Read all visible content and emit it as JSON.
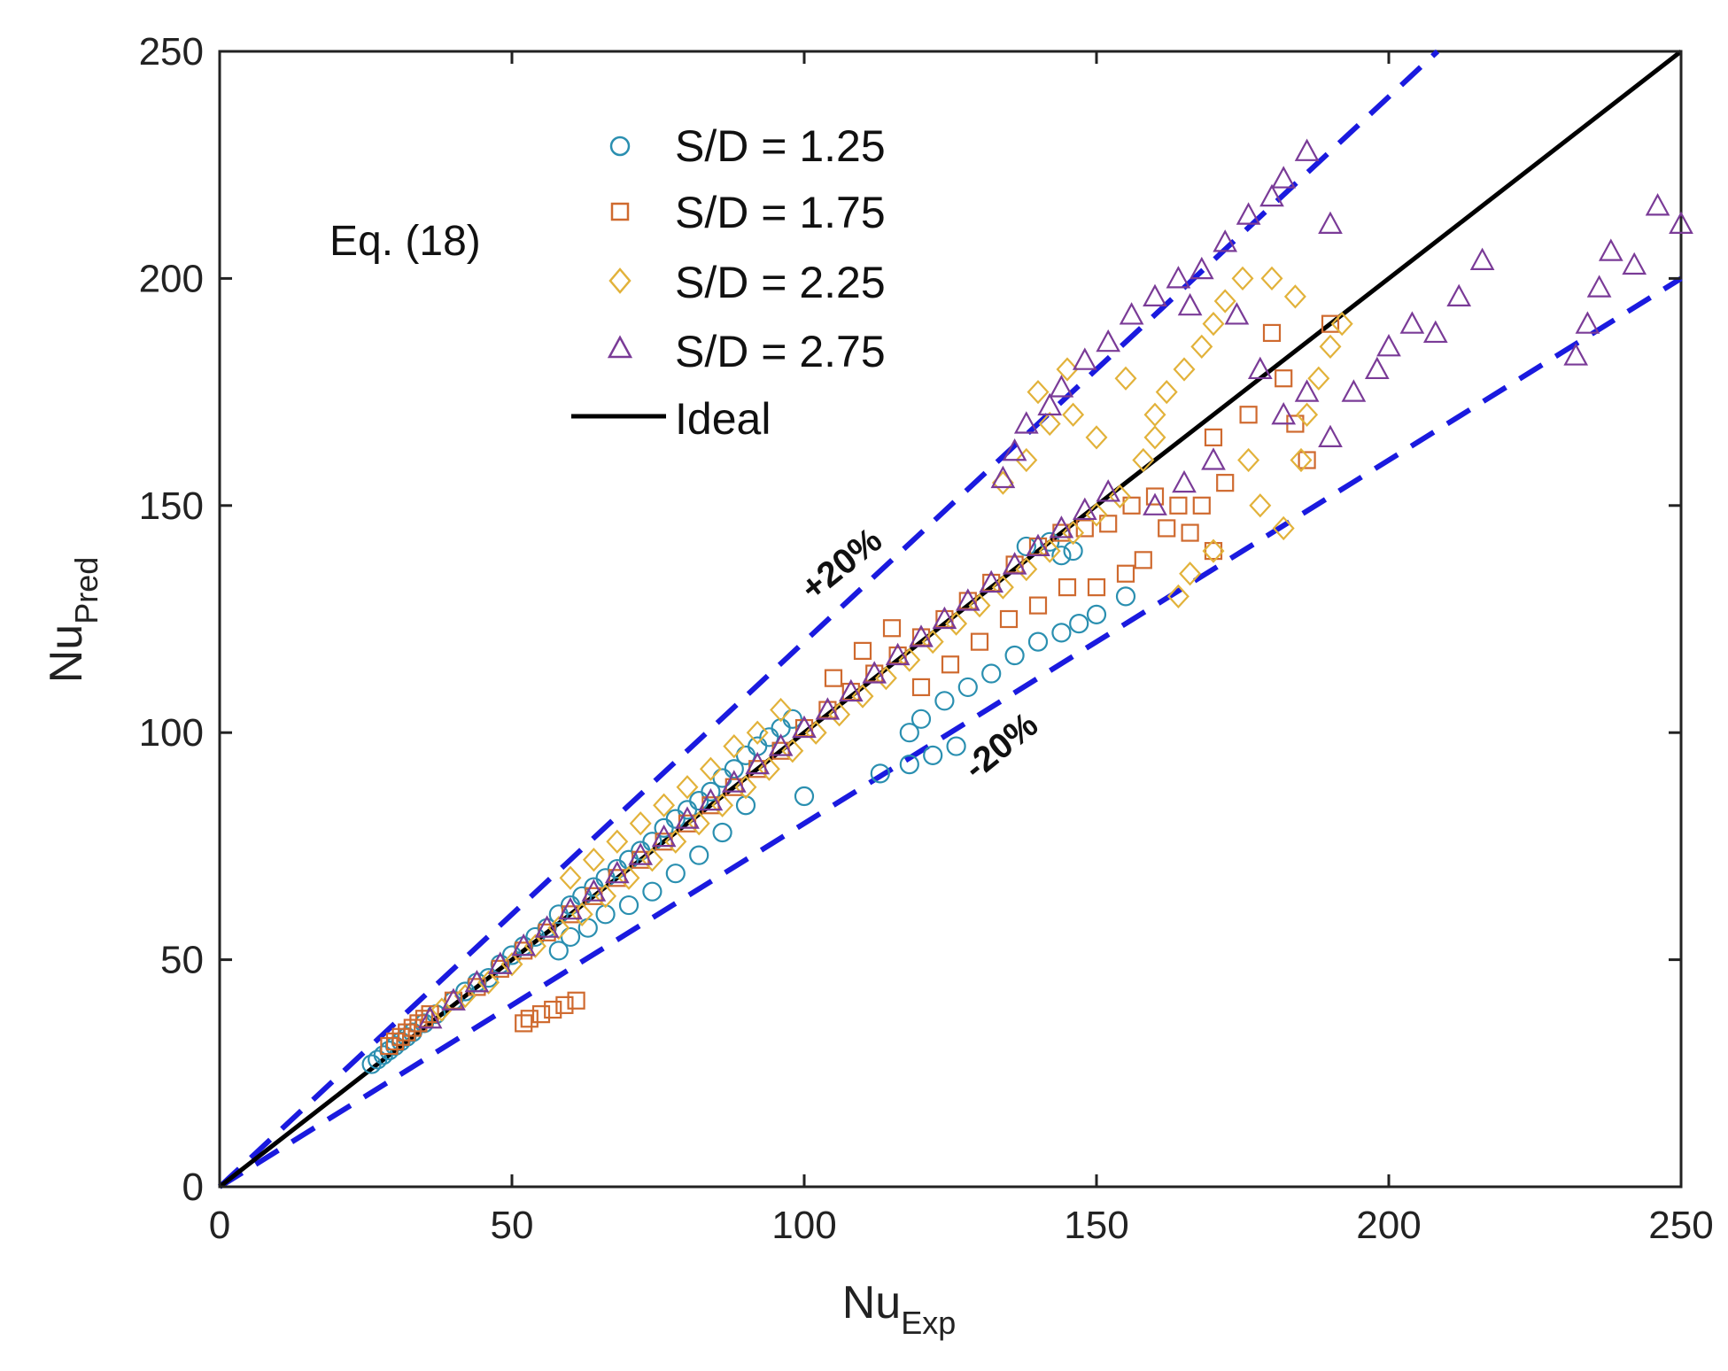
{
  "chart_data": {
    "type": "scatter",
    "title": "",
    "xlabel": "Nu",
    "xlabel_sub": "Exp",
    "ylabel": "Nu",
    "ylabel_sub": "Pred",
    "xlim": [
      0,
      250
    ],
    "ylim": [
      0,
      250
    ],
    "x_ticks": [
      "0",
      "50",
      "100",
      "150",
      "200",
      "250"
    ],
    "y_ticks": [
      "0",
      "50",
      "100",
      "150",
      "200",
      "250"
    ],
    "grid": false,
    "legend_position": "top-left",
    "annotation": "Eq. (18)",
    "band_labels": {
      "upper": "+20%",
      "lower": "-20%"
    },
    "colors": {
      "s125": "#2a8fb0",
      "s175": "#cf6a2f",
      "s225": "#e2b23a",
      "s275": "#7a3b97",
      "ideal": "#000000",
      "band": "#1a1adf"
    },
    "series": [
      {
        "name": "S/D = 1.25",
        "marker": "circle",
        "color_key": "s125",
        "points": [
          [
            26,
            27
          ],
          [
            27,
            28
          ],
          [
            28,
            29
          ],
          [
            29,
            30
          ],
          [
            30,
            31
          ],
          [
            31,
            32
          ],
          [
            32,
            33
          ],
          [
            33,
            34
          ],
          [
            35,
            36
          ],
          [
            37,
            38
          ],
          [
            40,
            41
          ],
          [
            42,
            43
          ],
          [
            44,
            45
          ],
          [
            46,
            46
          ],
          [
            48,
            49
          ],
          [
            50,
            51
          ],
          [
            52,
            53
          ],
          [
            54,
            55
          ],
          [
            56,
            57
          ],
          [
            58,
            60
          ],
          [
            60,
            62
          ],
          [
            62,
            64
          ],
          [
            64,
            66
          ],
          [
            66,
            68
          ],
          [
            68,
            70
          ],
          [
            70,
            72
          ],
          [
            72,
            74
          ],
          [
            74,
            76
          ],
          [
            76,
            79
          ],
          [
            78,
            81
          ],
          [
            80,
            83
          ],
          [
            82,
            85
          ],
          [
            84,
            87
          ],
          [
            86,
            90
          ],
          [
            88,
            92
          ],
          [
            90,
            95
          ],
          [
            92,
            97
          ],
          [
            94,
            99
          ],
          [
            96,
            101
          ],
          [
            98,
            103
          ],
          [
            58,
            52
          ],
          [
            60,
            55
          ],
          [
            63,
            57
          ],
          [
            66,
            60
          ],
          [
            70,
            62
          ],
          [
            74,
            65
          ],
          [
            78,
            69
          ],
          [
            82,
            73
          ],
          [
            86,
            78
          ],
          [
            90,
            84
          ],
          [
            100,
            86
          ],
          [
            113,
            91
          ],
          [
            118,
            93
          ],
          [
            122,
            95
          ],
          [
            126,
            97
          ],
          [
            118,
            100
          ],
          [
            120,
            103
          ],
          [
            124,
            107
          ],
          [
            128,
            110
          ],
          [
            132,
            113
          ],
          [
            136,
            117
          ],
          [
            140,
            120
          ],
          [
            144,
            122
          ],
          [
            147,
            124
          ],
          [
            150,
            126
          ],
          [
            155,
            130
          ],
          [
            138,
            141
          ],
          [
            142,
            142
          ],
          [
            144,
            139
          ],
          [
            146,
            140
          ]
        ]
      },
      {
        "name": "S/D = 1.75",
        "marker": "square",
        "color_key": "s175",
        "points": [
          [
            29,
            31
          ],
          [
            30,
            32
          ],
          [
            31,
            33
          ],
          [
            32,
            34
          ],
          [
            33,
            35
          ],
          [
            34,
            36
          ],
          [
            35,
            37
          ],
          [
            36,
            38
          ],
          [
            52,
            36
          ],
          [
            53,
            37
          ],
          [
            55,
            38
          ],
          [
            57,
            39
          ],
          [
            59,
            40
          ],
          [
            61,
            41
          ],
          [
            40,
            41
          ],
          [
            44,
            44
          ],
          [
            48,
            48
          ],
          [
            52,
            52
          ],
          [
            56,
            56
          ],
          [
            60,
            60
          ],
          [
            64,
            64
          ],
          [
            68,
            68
          ],
          [
            72,
            72
          ],
          [
            76,
            76
          ],
          [
            80,
            80
          ],
          [
            84,
            84
          ],
          [
            88,
            88
          ],
          [
            92,
            92
          ],
          [
            96,
            96
          ],
          [
            100,
            101
          ],
          [
            104,
            105
          ],
          [
            108,
            109
          ],
          [
            112,
            113
          ],
          [
            116,
            117
          ],
          [
            120,
            121
          ],
          [
            124,
            125
          ],
          [
            128,
            129
          ],
          [
            132,
            133
          ],
          [
            136,
            137
          ],
          [
            140,
            141
          ],
          [
            144,
            144
          ],
          [
            148,
            145
          ],
          [
            152,
            146
          ],
          [
            156,
            150
          ],
          [
            160,
            152
          ],
          [
            164,
            150
          ],
          [
            166,
            144
          ],
          [
            170,
            140
          ],
          [
            150,
            132
          ],
          [
            155,
            135
          ],
          [
            158,
            138
          ],
          [
            162,
            145
          ],
          [
            168,
            150
          ],
          [
            172,
            155
          ],
          [
            176,
            170
          ],
          [
            180,
            188
          ],
          [
            182,
            178
          ],
          [
            184,
            168
          ],
          [
            186,
            160
          ],
          [
            190,
            190
          ],
          [
            120,
            110
          ],
          [
            125,
            115
          ],
          [
            130,
            120
          ],
          [
            135,
            125
          ],
          [
            140,
            128
          ],
          [
            145,
            132
          ],
          [
            105,
            112
          ],
          [
            110,
            118
          ],
          [
            115,
            123
          ],
          [
            170,
            165
          ]
        ]
      },
      {
        "name": "S/D = 2.25",
        "marker": "diamond",
        "color_key": "s225",
        "points": [
          [
            38,
            39
          ],
          [
            42,
            42
          ],
          [
            46,
            45
          ],
          [
            50,
            49
          ],
          [
            54,
            53
          ],
          [
            58,
            57
          ],
          [
            62,
            60
          ],
          [
            66,
            64
          ],
          [
            70,
            68
          ],
          [
            74,
            72
          ],
          [
            78,
            76
          ],
          [
            82,
            80
          ],
          [
            86,
            84
          ],
          [
            90,
            88
          ],
          [
            94,
            92
          ],
          [
            98,
            96
          ],
          [
            102,
            100
          ],
          [
            106,
            104
          ],
          [
            110,
            108
          ],
          [
            114,
            112
          ],
          [
            118,
            116
          ],
          [
            122,
            120
          ],
          [
            126,
            124
          ],
          [
            130,
            128
          ],
          [
            134,
            132
          ],
          [
            138,
            136
          ],
          [
            142,
            140
          ],
          [
            146,
            144
          ],
          [
            150,
            148
          ],
          [
            154,
            152
          ],
          [
            158,
            160
          ],
          [
            160,
            170
          ],
          [
            162,
            175
          ],
          [
            165,
            180
          ],
          [
            168,
            185
          ],
          [
            170,
            190
          ],
          [
            172,
            195
          ],
          [
            175,
            200
          ],
          [
            180,
            200
          ],
          [
            184,
            196
          ],
          [
            186,
            170
          ],
          [
            188,
            178
          ],
          [
            190,
            185
          ],
          [
            192,
            190
          ],
          [
            176,
            160
          ],
          [
            178,
            150
          ],
          [
            182,
            145
          ],
          [
            185,
            160
          ],
          [
            170,
            140
          ],
          [
            166,
            135
          ],
          [
            150,
            165
          ],
          [
            146,
            170
          ],
          [
            142,
            168
          ],
          [
            138,
            160
          ],
          [
            134,
            155
          ],
          [
            140,
            175
          ],
          [
            145,
            180
          ],
          [
            155,
            178
          ],
          [
            160,
            165
          ],
          [
            164,
            130
          ],
          [
            60,
            68
          ],
          [
            64,
            72
          ],
          [
            68,
            76
          ],
          [
            72,
            80
          ],
          [
            76,
            84
          ],
          [
            80,
            88
          ],
          [
            84,
            92
          ],
          [
            88,
            97
          ],
          [
            92,
            100
          ],
          [
            96,
            105
          ]
        ]
      },
      {
        "name": "S/D = 2.75",
        "marker": "triangle",
        "color_key": "s275",
        "points": [
          [
            36,
            37
          ],
          [
            40,
            41
          ],
          [
            44,
            45
          ],
          [
            48,
            49
          ],
          [
            52,
            53
          ],
          [
            56,
            57
          ],
          [
            60,
            61
          ],
          [
            64,
            65
          ],
          [
            68,
            69
          ],
          [
            72,
            73
          ],
          [
            76,
            77
          ],
          [
            80,
            81
          ],
          [
            84,
            85
          ],
          [
            88,
            89
          ],
          [
            92,
            93
          ],
          [
            96,
            97
          ],
          [
            100,
            101
          ],
          [
            104,
            105
          ],
          [
            108,
            109
          ],
          [
            112,
            113
          ],
          [
            116,
            117
          ],
          [
            120,
            121
          ],
          [
            124,
            125
          ],
          [
            128,
            129
          ],
          [
            132,
            133
          ],
          [
            136,
            137
          ],
          [
            140,
            141
          ],
          [
            144,
            145
          ],
          [
            148,
            149
          ],
          [
            152,
            153
          ],
          [
            134,
            156
          ],
          [
            136,
            162
          ],
          [
            138,
            168
          ],
          [
            142,
            172
          ],
          [
            144,
            176
          ],
          [
            148,
            182
          ],
          [
            152,
            186
          ],
          [
            156,
            192
          ],
          [
            160,
            196
          ],
          [
            164,
            200
          ],
          [
            168,
            202
          ],
          [
            172,
            208
          ],
          [
            176,
            214
          ],
          [
            180,
            218
          ],
          [
            182,
            222
          ],
          [
            186,
            228
          ],
          [
            190,
            212
          ],
          [
            166,
            194
          ],
          [
            174,
            192
          ],
          [
            178,
            180
          ],
          [
            182,
            170
          ],
          [
            186,
            175
          ],
          [
            190,
            165
          ],
          [
            194,
            175
          ],
          [
            198,
            180
          ],
          [
            200,
            185
          ],
          [
            204,
            190
          ],
          [
            208,
            188
          ],
          [
            212,
            196
          ],
          [
            216,
            204
          ],
          [
            232,
            183
          ],
          [
            234,
            190
          ],
          [
            236,
            198
          ],
          [
            238,
            206
          ],
          [
            242,
            203
          ],
          [
            246,
            216
          ],
          [
            250,
            212
          ],
          [
            160,
            150
          ],
          [
            165,
            155
          ],
          [
            170,
            160
          ]
        ]
      }
    ],
    "ideal_line": {
      "name": "Ideal",
      "from": [
        0,
        0
      ],
      "to": [
        250,
        250
      ]
    },
    "band_lines": [
      {
        "name": "+20%",
        "slope": 1.2
      },
      {
        "name": "-20%",
        "slope": 0.8
      }
    ]
  }
}
